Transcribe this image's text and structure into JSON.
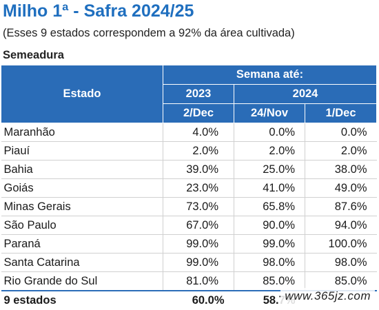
{
  "title": "Milho 1ª - Safra 2024/25",
  "subtitle": "(Esses 9 estados correspondem a 92% da área cultivada)",
  "section": "Semeadura",
  "table": {
    "col_estado": "Estado",
    "col_semana": "Semana até:",
    "year_2023": "2023",
    "year_2024": "2024",
    "date_1": "2/Dec",
    "date_2": "24/Nov",
    "date_3": "1/Dec",
    "rows": [
      {
        "estado": "Maranhão",
        "v2023": "4.0%",
        "v24nov": "0.0%",
        "v1dec": "0.0%"
      },
      {
        "estado": "Piauí",
        "v2023": "2.0%",
        "v24nov": "2.0%",
        "v1dec": "2.0%"
      },
      {
        "estado": "Bahia",
        "v2023": "39.0%",
        "v24nov": "25.0%",
        "v1dec": "38.0%"
      },
      {
        "estado": "Goiás",
        "v2023": "23.0%",
        "v24nov": "41.0%",
        "v1dec": "49.0%"
      },
      {
        "estado": "Minas Gerais",
        "v2023": "73.0%",
        "v24nov": "65.8%",
        "v1dec": "87.6%"
      },
      {
        "estado": "São Paulo",
        "v2023": "67.0%",
        "v24nov": "90.0%",
        "v1dec": "94.0%"
      },
      {
        "estado": "Paraná",
        "v2023": "99.0%",
        "v24nov": "99.0%",
        "v1dec": "100.0%"
      },
      {
        "estado": "Santa Catarina",
        "v2023": "99.0%",
        "v24nov": "98.0%",
        "v1dec": "98.0%"
      },
      {
        "estado": "Rio Grande do Sul",
        "v2023": "81.0%",
        "v24nov": "85.0%",
        "v1dec": "85.0%"
      }
    ],
    "total": {
      "estado": "9 estados",
      "v2023": "60.0%",
      "v24nov": "58.7%",
      "v1dec": ""
    }
  },
  "watermark": "www.365jz.com"
}
